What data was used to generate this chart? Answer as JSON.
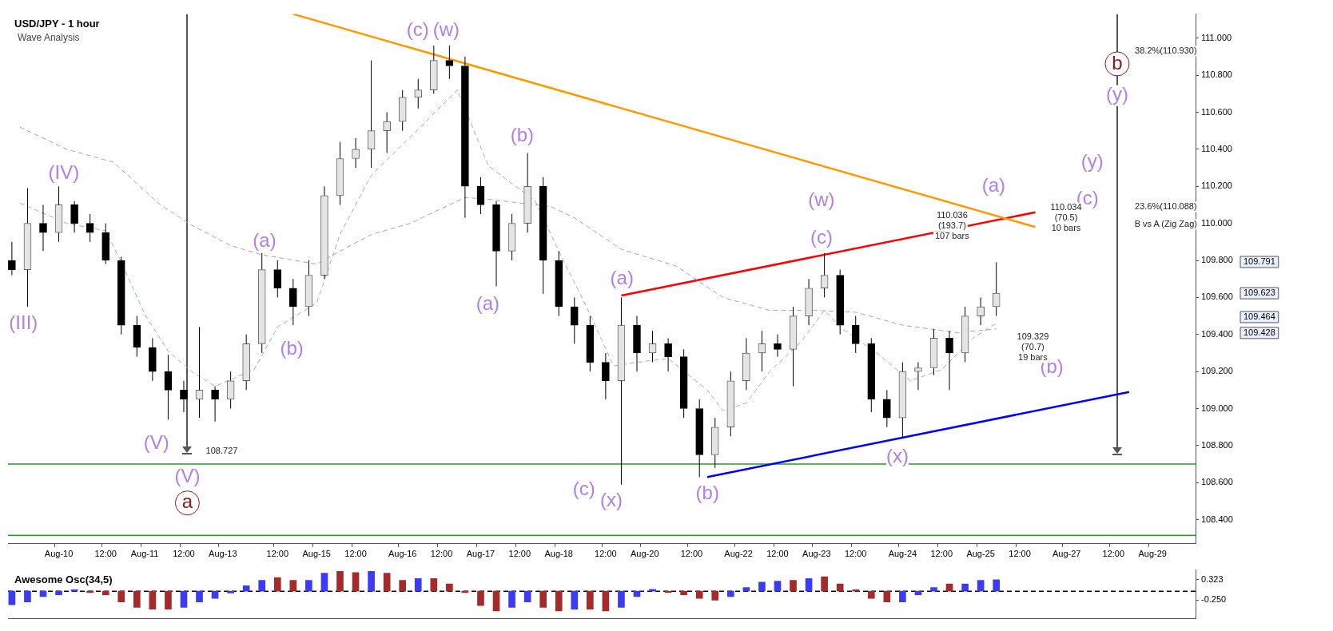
{
  "chart_data": [
    {
      "type": "candlestick",
      "title": "USD/JPY - 1 hour",
      "subtitle": "Wave Analysis",
      "categories": [
        null,
        null,
        null,
        null,
        null,
        null,
        "Aug-10",
        null,
        null,
        null,
        null,
        null,
        "12:00",
        null,
        null,
        null,
        null,
        "Aug-11",
        null,
        null,
        null,
        null,
        "12:00",
        null,
        null,
        null,
        null,
        "Aug-13",
        null,
        null,
        null,
        null,
        null,
        null,
        "12:00",
        null,
        null,
        null,
        null,
        "Aug-15",
        null,
        null,
        null,
        null,
        "12:00",
        null,
        null,
        null,
        null,
        null,
        "Aug-16",
        null,
        null,
        null,
        null,
        "12:00",
        null,
        null,
        null,
        null,
        "Aug-17",
        null,
        null,
        null,
        null,
        "12:00",
        null,
        null,
        null,
        null,
        "Aug-18",
        null,
        null,
        null,
        null,
        null,
        "12:00",
        null,
        null,
        null,
        null,
        "Aug-20",
        null,
        null,
        null,
        null,
        null,
        "12:00",
        null,
        null,
        null,
        null,
        null,
        "Aug-22",
        null,
        null,
        null,
        null,
        "12:00",
        null,
        null,
        null,
        null,
        "Aug-23",
        null,
        null,
        null,
        null,
        "12:00",
        null,
        null,
        null,
        null,
        null,
        "Aug-24",
        null,
        null,
        null,
        null,
        "12:00",
        null,
        null,
        null,
        null,
        "Aug-25",
        null,
        null,
        null,
        null,
        "12:00",
        null,
        null,
        null,
        null,
        null,
        "Aug-27",
        null,
        null,
        null,
        null,
        null,
        "12:00",
        null,
        null,
        null,
        null,
        "Aug-29",
        null,
        null,
        null,
        null,
        null
      ],
      "ohlc": [
        [
          109.8,
          109.9,
          109.72,
          109.75
        ],
        null,
        [
          109.75,
          110.19,
          109.55,
          110.0
        ],
        null,
        [
          110.0,
          110.1,
          109.85,
          109.95
        ],
        null,
        [
          109.95,
          110.2,
          109.9,
          110.1
        ],
        null,
        [
          110.1,
          110.12,
          109.95,
          110.0
        ],
        null,
        [
          110.0,
          110.05,
          109.9,
          109.95
        ],
        null,
        [
          109.95,
          110.0,
          109.78,
          109.8
        ],
        null,
        [
          109.8,
          109.82,
          109.4,
          109.45
        ],
        null,
        [
          109.45,
          109.5,
          109.28,
          109.33
        ],
        null,
        [
          109.33,
          109.38,
          109.15,
          109.2
        ],
        null,
        [
          109.2,
          109.29,
          108.94,
          109.1
        ],
        null,
        [
          109.1,
          109.15,
          108.98,
          109.05
        ],
        null,
        [
          109.05,
          109.44,
          108.95,
          109.1
        ],
        null,
        [
          109.1,
          109.12,
          108.93,
          109.05
        ],
        null,
        [
          109.05,
          109.2,
          109.0,
          109.15
        ],
        null,
        [
          109.15,
          109.4,
          109.1,
          109.35
        ],
        null,
        [
          109.35,
          109.84,
          109.3,
          109.75
        ],
        null,
        [
          109.75,
          109.8,
          109.6,
          109.65
        ],
        null,
        [
          109.65,
          109.7,
          109.45,
          109.55
        ],
        null,
        [
          109.55,
          109.8,
          109.5,
          109.72
        ],
        null,
        [
          109.72,
          110.2,
          109.7,
          110.15
        ],
        null,
        [
          110.15,
          110.44,
          110.1,
          110.35
        ],
        null,
        [
          110.35,
          110.46,
          110.3,
          110.4
        ],
        null,
        [
          110.4,
          110.88,
          110.3,
          110.5
        ],
        null,
        [
          110.5,
          110.6,
          110.38,
          110.55
        ],
        null,
        [
          110.55,
          110.72,
          110.5,
          110.68
        ],
        null,
        [
          110.68,
          110.78,
          110.62,
          110.72
        ],
        null,
        [
          110.72,
          110.96,
          110.7,
          110.88
        ],
        null,
        [
          110.88,
          110.96,
          110.78,
          110.85
        ],
        null,
        [
          110.85,
          110.9,
          110.03,
          110.2
        ],
        null,
        [
          110.2,
          110.25,
          110.05,
          110.1
        ],
        null,
        [
          110.1,
          110.12,
          109.66,
          109.85
        ],
        null,
        [
          109.85,
          110.05,
          109.8,
          110.0
        ],
        null,
        [
          110.0,
          110.38,
          109.95,
          110.2
        ],
        null,
        [
          110.2,
          110.25,
          109.62,
          109.8
        ],
        null,
        [
          109.8,
          109.85,
          109.5,
          109.55
        ],
        null,
        [
          109.55,
          109.6,
          109.35,
          109.45
        ],
        null,
        [
          109.45,
          109.5,
          109.2,
          109.25
        ],
        null,
        [
          109.25,
          109.3,
          109.05,
          109.15
        ],
        null,
        [
          109.15,
          109.6,
          108.59,
          109.45
        ],
        null,
        [
          109.45,
          109.5,
          109.2,
          109.3
        ],
        null,
        [
          109.3,
          109.42,
          109.25,
          109.35
        ],
        null,
        [
          109.35,
          109.38,
          109.2,
          109.28
        ],
        null,
        [
          109.28,
          109.32,
          108.95,
          109.0
        ],
        null,
        [
          109.0,
          109.05,
          108.63,
          108.75
        ],
        null,
        [
          108.75,
          108.95,
          108.68,
          108.9
        ],
        null,
        [
          108.9,
          109.2,
          108.85,
          109.15
        ],
        null,
        [
          109.15,
          109.38,
          109.1,
          109.3
        ],
        null,
        [
          109.3,
          109.42,
          109.2,
          109.35
        ],
        null,
        [
          109.35,
          109.4,
          109.28,
          109.32
        ],
        null,
        [
          109.32,
          109.55,
          109.12,
          109.5
        ],
        null,
        [
          109.5,
          109.7,
          109.45,
          109.65
        ],
        null,
        [
          109.65,
          109.84,
          109.6,
          109.72
        ],
        null,
        [
          109.72,
          109.75,
          109.4,
          109.45
        ],
        null,
        [
          109.45,
          109.5,
          109.3,
          109.35
        ],
        null,
        [
          109.35,
          109.38,
          108.98,
          109.05
        ],
        null,
        [
          109.05,
          109.1,
          108.9,
          108.95
        ],
        null,
        [
          108.95,
          109.25,
          108.84,
          109.2
        ],
        null,
        [
          109.2,
          109.25,
          109.1,
          109.22
        ],
        null,
        [
          109.22,
          109.43,
          109.18,
          109.38
        ],
        null,
        [
          109.38,
          109.42,
          109.1,
          109.3
        ],
        null,
        [
          109.3,
          109.55,
          109.25,
          109.5
        ],
        null,
        [
          109.5,
          109.6,
          109.45,
          109.55
        ],
        null,
        [
          109.55,
          109.79,
          109.5,
          109.623
        ],
        null,
        null,
        null,
        null,
        null,
        null,
        null,
        null,
        null,
        null,
        null,
        null,
        null,
        null,
        null,
        null,
        null,
        null,
        null,
        null,
        null,
        null,
        null,
        null,
        null
      ],
      "series": [
        {
          "type": "line",
          "color": "#c48fdc",
          "line_style": "dashed",
          "values": [
            null,
            110.52,
            null,
            null,
            null,
            null,
            null,
            110.4,
            null,
            null,
            null,
            null,
            null,
            110.33,
            null,
            null,
            null,
            null,
            null,
            110.1,
            null,
            null,
            null,
            109.99,
            null,
            null,
            null,
            null,
            109.88,
            null,
            null,
            null,
            109.83,
            null,
            null,
            null,
            null,
            null,
            null,
            109.78,
            null,
            null,
            109.85,
            null,
            null,
            null,
            109.94,
            null,
            null,
            null,
            null,
            110.0,
            null,
            null,
            null,
            null,
            null,
            null,
            110.14,
            null,
            null,
            110.13,
            null,
            null,
            null,
            null,
            null,
            null,
            null,
            110.09,
            null,
            null,
            110.03,
            null,
            null,
            null,
            null,
            null,
            109.86,
            null,
            null,
            null,
            null,
            null,
            null,
            109.77,
            null,
            null,
            null,
            null,
            null,
            109.6,
            null,
            null,
            null,
            null,
            null,
            109.53,
            null,
            null,
            null,
            null,
            null,
            109.53,
            null,
            null,
            null,
            null,
            109.52,
            null,
            null,
            null,
            null,
            null,
            109.45,
            null,
            null,
            null,
            null,
            null,
            null,
            109.41,
            null,
            null,
            null,
            null,
            109.43,
            null,
            null,
            null,
            null,
            null,
            null,
            null,
            null,
            null,
            null,
            null,
            null,
            null,
            null,
            null,
            null,
            null,
            null,
            null,
            null,
            null,
            null,
            null,
            null,
            null
          ]
        },
        {
          "type": "line",
          "color": "#8fb0ef",
          "line_style": "dashed",
          "values": [
            null,
            110.11,
            null,
            null,
            null,
            null,
            null,
            110.0,
            null,
            null,
            null,
            null,
            109.96,
            null,
            109.79,
            null,
            null,
            109.51,
            null,
            null,
            109.31,
            null,
            null,
            109.2,
            null,
            null,
            109.12,
            null,
            null,
            null,
            null,
            109.21,
            null,
            null,
            109.44,
            null,
            null,
            null,
            null,
            109.57,
            null,
            null,
            109.94,
            null,
            null,
            null,
            110.26,
            null,
            null,
            null,
            null,
            null,
            null,
            110.55,
            null,
            null,
            null,
            110.72,
            null,
            null,
            null,
            110.31,
            null,
            null,
            null,
            null,
            null,
            110.12,
            null,
            null,
            109.85,
            null,
            null,
            null,
            109.51,
            null,
            null,
            109.23,
            null,
            null,
            109.25,
            null,
            null,
            null,
            109.27,
            null,
            null,
            null,
            null,
            109.1,
            null,
            108.99,
            null,
            null,
            109.03,
            null,
            null,
            109.2,
            null,
            null,
            null,
            109.36,
            null,
            null,
            109.53,
            null,
            109.44,
            null,
            null,
            null,
            null,
            109.29,
            null,
            null,
            null,
            109.15,
            null,
            null,
            null,
            109.21,
            null,
            null,
            null,
            109.38,
            null,
            null,
            109.46,
            null,
            null,
            null,
            null,
            null,
            null,
            null,
            null,
            null,
            null,
            null,
            null,
            null,
            null,
            null,
            null,
            null,
            null,
            null,
            null,
            null,
            null,
            null,
            null,
            null
          ]
        },
        {
          "type": "line",
          "color": "#ff9900",
          "line_style": "solid",
          "values": [
            null,
            null,
            null,
            null,
            null,
            null,
            null,
            null,
            null,
            null,
            null,
            null,
            null,
            null,
            null,
            null,
            null,
            null,
            null,
            null,
            null,
            null,
            null,
            null,
            null,
            null,
            null,
            null,
            null,
            null,
            null,
            null,
            null,
            null,
            null,
            null,
            111.13,
            null,
            null,
            null,
            null,
            null,
            null,
            null,
            null,
            null,
            null,
            null,
            null,
            null,
            null,
            null,
            null,
            null,
            null,
            null,
            null,
            null,
            null,
            null,
            null,
            null,
            null,
            null,
            null,
            null,
            null,
            null,
            null,
            null,
            null,
            null,
            null,
            null,
            null,
            null,
            null,
            null,
            null,
            null,
            null,
            null,
            null,
            null,
            null,
            null,
            null,
            null,
            null,
            null,
            null,
            null,
            null,
            null,
            null,
            null,
            null,
            null,
            null,
            null,
            null,
            null,
            null,
            null,
            null,
            null,
            null,
            null,
            null,
            null,
            null,
            null,
            null,
            null,
            null,
            null,
            null,
            null,
            null,
            null,
            null,
            null,
            null,
            null,
            null,
            null,
            null,
            null,
            null,
            null,
            null,
            109.98,
            null,
            null,
            null,
            null,
            null,
            null,
            null,
            null,
            null,
            null,
            null,
            null,
            null,
            null,
            null,
            null,
            null,
            null,
            null,
            null
          ]
        },
        {
          "type": "line",
          "color": "#ff0000",
          "line_style": "solid",
          "values": [
            null,
            null,
            null,
            null,
            null,
            null,
            null,
            null,
            null,
            null,
            null,
            null,
            null,
            null,
            null,
            null,
            null,
            null,
            null,
            null,
            null,
            null,
            null,
            null,
            null,
            null,
            null,
            null,
            null,
            null,
            null,
            null,
            null,
            null,
            null,
            null,
            null,
            null,
            null,
            null,
            null,
            null,
            null,
            null,
            null,
            null,
            null,
            null,
            null,
            null,
            null,
            null,
            null,
            null,
            null,
            null,
            null,
            null,
            null,
            null,
            null,
            null,
            null,
            null,
            null,
            null,
            null,
            null,
            null,
            null,
            null,
            null,
            null,
            null,
            null,
            null,
            null,
            null,
            109.61,
            null,
            null,
            null,
            null,
            null,
            null,
            null,
            null,
            null,
            null,
            null,
            null,
            null,
            null,
            null,
            null,
            null,
            null,
            null,
            null,
            null,
            null,
            null,
            null,
            null,
            null,
            null,
            null,
            null,
            null,
            null,
            null,
            null,
            null,
            null,
            null,
            null,
            null,
            null,
            null,
            null,
            null,
            null,
            null,
            null,
            null,
            null,
            null,
            null,
            null,
            null,
            null,
            110.06,
            null,
            null,
            null,
            null,
            null,
            null,
            null,
            null,
            null,
            null,
            null,
            null,
            null,
            null,
            null,
            null,
            null,
            null,
            null,
            null
          ]
        },
        {
          "type": "line",
          "color": "#0000ff",
          "line_style": "solid",
          "values": [
            null,
            null,
            null,
            null,
            null,
            null,
            null,
            null,
            null,
            null,
            null,
            null,
            null,
            null,
            null,
            null,
            null,
            null,
            null,
            null,
            null,
            null,
            null,
            null,
            null,
            null,
            null,
            null,
            null,
            null,
            null,
            null,
            null,
            null,
            null,
            null,
            null,
            null,
            null,
            null,
            null,
            null,
            null,
            null,
            null,
            null,
            null,
            null,
            null,
            null,
            null,
            null,
            null,
            null,
            null,
            null,
            null,
            null,
            null,
            null,
            null,
            null,
            null,
            null,
            null,
            null,
            null,
            null,
            null,
            null,
            null,
            null,
            null,
            null,
            null,
            null,
            null,
            null,
            null,
            null,
            null,
            null,
            null,
            null,
            null,
            null,
            null,
            null,
            null,
            108.63,
            null,
            null,
            null,
            null,
            null,
            null,
            null,
            null,
            null,
            null,
            null,
            null,
            null,
            null,
            null,
            null,
            null,
            null,
            null,
            null,
            null,
            null,
            null,
            null,
            null,
            null,
            null,
            null,
            null,
            null,
            null,
            null,
            null,
            null,
            null,
            null,
            null,
            null,
            null,
            null,
            null,
            null,
            null,
            null,
            null,
            null,
            null,
            null,
            null,
            null,
            null,
            null,
            null,
            109.09,
            null,
            null,
            null,
            null,
            null,
            null,
            null,
            null
          ]
        }
      ],
      "ylim": [
        108.27,
        111.13
      ],
      "yticks": [
        {
          "value": 108.4,
          "label": "108.400"
        },
        {
          "value": 108.6,
          "label": "108.600"
        },
        {
          "value": 108.8,
          "label": "108.800"
        },
        {
          "value": 109,
          "label": "109.000"
        },
        {
          "value": 109.2,
          "label": "109.200"
        },
        {
          "value": 109.4,
          "label": "109.400"
        },
        {
          "value": 109.6,
          "label": "109.600"
        },
        {
          "value": 109.8,
          "label": "109.800"
        },
        {
          "value": 110,
          "label": "110.000"
        },
        {
          "value": 110.2,
          "label": "110.200"
        },
        {
          "value": 110.4,
          "label": "110.400"
        },
        {
          "value": 110.6,
          "label": "110.600"
        },
        {
          "value": 110.8,
          "label": "110.800"
        },
        {
          "value": 111,
          "label": "111.000"
        }
      ],
      "ref_lines": [
        {
          "axis": "y",
          "value": 108.7,
          "color": "#2a9a2a"
        },
        {
          "axis": "y",
          "value": 108.316,
          "color": "#2a9a2a"
        }
      ],
      "annotations": [
        "(III)",
        "(IV)",
        "(V)",
        "(V)",
        "a",
        "(a)",
        "(b)",
        "(c)",
        "(w)",
        "(a)",
        "(b)",
        "(c)",
        "(x)",
        "(a)",
        "(b)",
        "(w)",
        "(c)",
        "(x)",
        "(a)",
        "(b)",
        "(c)",
        "(y)",
        "b",
        "(y)",
        "108.727",
        "110.036\n(193.7)\n107 bars",
        "110.034\n(70.5)\n10 bars",
        "109.329\n(70.7)\n19 bars",
        "38.2%(110.930)",
        "23.6%(110.088)",
        "B vs A (Zig Zag)",
        "109.791",
        "109.623",
        "109.464",
        "109.428"
      ]
    },
    {
      "type": "bar",
      "title": "Awesome Osc(34,5)",
      "categories": [
        null,
        null,
        null,
        null,
        null,
        null,
        null,
        null,
        null,
        null,
        null,
        null,
        null,
        null,
        null,
        null,
        null,
        null,
        null,
        null,
        null,
        null,
        null,
        null,
        null,
        null,
        null,
        null,
        null,
        null,
        null,
        null,
        null,
        null,
        null,
        null,
        null,
        null,
        null,
        null,
        null,
        null,
        null,
        null,
        null,
        null,
        null,
        null,
        null,
        null,
        null,
        null,
        null,
        null,
        null,
        null,
        null,
        null,
        null,
        null,
        null,
        null,
        null,
        null,
        null,
        null,
        null,
        null,
        null,
        null,
        null,
        null,
        null,
        null,
        null,
        null,
        null,
        null,
        null,
        null,
        null,
        null,
        null,
        null,
        null,
        null,
        null,
        null,
        null,
        null,
        null,
        null,
        null,
        null,
        null,
        null,
        null,
        null,
        null,
        null,
        null,
        null,
        null,
        null,
        null,
        null,
        null,
        null,
        null,
        null,
        null,
        null,
        null,
        null,
        null,
        null,
        null,
        null,
        null,
        null,
        null,
        null,
        null,
        null,
        null,
        null,
        null,
        null,
        null,
        null,
        null,
        null,
        null,
        null,
        null,
        null,
        null,
        null,
        null,
        null,
        null,
        null,
        null,
        null,
        null,
        null,
        null,
        null,
        null,
        null,
        null,
        null
      ],
      "values": [
        -0.38,
        null,
        -0.3,
        null,
        -0.15,
        null,
        -0.1,
        null,
        0.04,
        null,
        -0.04,
        null,
        -0.1,
        null,
        -0.3,
        null,
        -0.45,
        null,
        -0.5,
        null,
        -0.5,
        null,
        -0.45,
        null,
        -0.3,
        null,
        -0.2,
        null,
        -0.05,
        null,
        0.15,
        null,
        0.3,
        null,
        0.38,
        null,
        0.3,
        null,
        0.3,
        null,
        0.5,
        null,
        0.55,
        null,
        0.52,
        null,
        0.55,
        null,
        0.5,
        null,
        0.3,
        null,
        0.35,
        null,
        0.35,
        null,
        0.2,
        null,
        -0.04,
        null,
        -0.4,
        null,
        -0.55,
        null,
        -0.45,
        null,
        -0.3,
        null,
        -0.45,
        null,
        -0.55,
        null,
        -0.5,
        null,
        -0.5,
        null,
        -0.55,
        null,
        -0.45,
        null,
        -0.15,
        null,
        0.05,
        null,
        -0.04,
        null,
        -0.1,
        null,
        -0.2,
        null,
        -0.25,
        null,
        -0.15,
        null,
        0.1,
        null,
        0.25,
        null,
        0.28,
        null,
        0.3,
        null,
        0.35,
        null,
        0.4,
        null,
        0.2,
        null,
        0.04,
        null,
        -0.2,
        null,
        -0.3,
        null,
        -0.3,
        null,
        -0.1,
        null,
        0.1,
        null,
        0.2,
        null,
        0.2,
        null,
        0.3,
        null,
        0.32,
        null,
        null,
        null,
        null,
        null,
        null,
        null,
        null,
        null,
        null,
        null,
        null,
        null,
        null,
        null,
        null,
        null,
        null,
        null,
        null,
        null,
        null,
        null,
        null,
        null
      ],
      "colors": [
        "#3b3bf5",
        null,
        "#3b3bf5",
        null,
        "#3b3bf5",
        null,
        "#3b3bf5",
        null,
        "#3b3bf5",
        null,
        "#a52a2a",
        null,
        "#a52a2a",
        null,
        "#a52a2a",
        null,
        "#a52a2a",
        null,
        "#a52a2a",
        null,
        "#a52a2a",
        null,
        "#3b3bf5",
        null,
        "#3b3bf5",
        null,
        "#3b3bf5",
        null,
        "#3b3bf5",
        null,
        "#3b3bf5",
        null,
        "#3b3bf5",
        null,
        "#a52a2a",
        null,
        "#a52a2a",
        null,
        "#3b3bf5",
        null,
        "#3b3bf5",
        null,
        "#a52a2a",
        null,
        "#a52a2a",
        null,
        "#3b3bf5",
        null,
        "#a52a2a",
        null,
        "#a52a2a",
        null,
        "#3b3bf5",
        null,
        "#a52a2a",
        null,
        "#a52a2a",
        null,
        "#a52a2a",
        null,
        "#a52a2a",
        null,
        "#a52a2a",
        null,
        "#3b3bf5",
        null,
        "#3b3bf5",
        null,
        "#a52a2a",
        null,
        "#a52a2a",
        null,
        "#3b3bf5",
        null,
        "#a52a2a",
        null,
        "#a52a2a",
        null,
        "#3b3bf5",
        null,
        "#3b3bf5",
        null,
        "#3b3bf5",
        null,
        "#a52a2a",
        null,
        "#a52a2a",
        null,
        "#a52a2a",
        null,
        "#a52a2a",
        null,
        "#3b3bf5",
        null,
        "#3b3bf5",
        null,
        "#3b3bf5",
        null,
        "#3b3bf5",
        null,
        "#a52a2a",
        null,
        "#3b3bf5",
        null,
        "#a52a2a",
        null,
        "#a52a2a",
        null,
        "#a52a2a",
        null,
        "#a52a2a",
        null,
        "#a52a2a",
        null,
        "#3b3bf5",
        null,
        "#3b3bf5",
        null,
        "#3b3bf5",
        null,
        "#a52a2a",
        null,
        "#3b3bf5",
        null,
        "#3b3bf5",
        null,
        "#3b3bf5",
        null,
        null,
        null,
        null,
        null,
        null,
        null,
        null,
        null,
        null,
        null,
        null,
        null,
        null,
        null,
        null,
        null,
        null,
        null,
        null,
        null,
        null,
        null,
        null,
        null
      ],
      "ylim": [
        -0.76,
        0.59
      ],
      "yticks": [
        {
          "value": -0.25,
          "label": "-0.250"
        },
        {
          "value": 0.323,
          "label": "0.323"
        }
      ],
      "tick_labels": "y",
      "ref_lines": [
        {
          "axis": "y",
          "value": 0,
          "color": "#000000",
          "line_style": "dashed"
        }
      ]
    }
  ]
}
